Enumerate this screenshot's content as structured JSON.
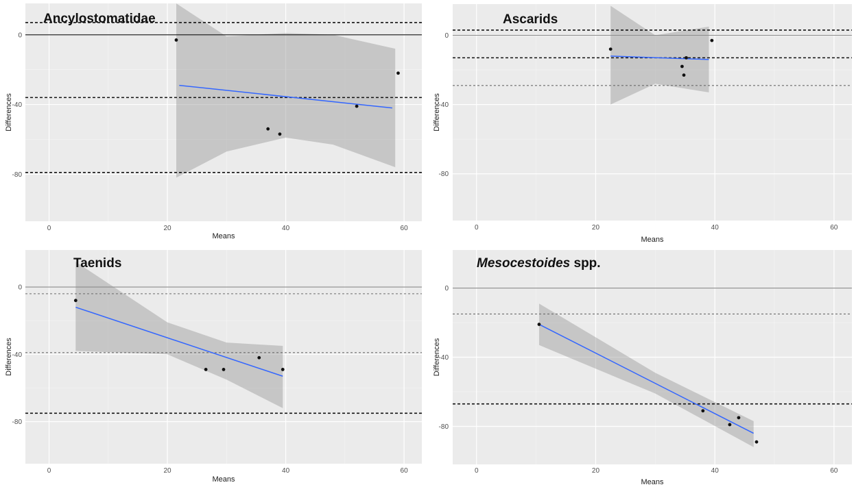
{
  "chart_data": [
    {
      "type": "scatter",
      "title": "Ancylostomatidae",
      "title_italic": "",
      "xlabel": "Means",
      "ylabel": "Differences",
      "xlim": [
        -4,
        63
      ],
      "ylim": [
        -107,
        18
      ],
      "xticks": [
        0,
        20,
        40,
        60
      ],
      "yticks": [
        0,
        -40,
        -80
      ],
      "ytick_labels": [
        "0",
        "-40",
        "-80"
      ],
      "points": [
        [
          21.5,
          -3
        ],
        [
          37,
          -54
        ],
        [
          39,
          -57
        ],
        [
          52,
          -41
        ],
        [
          59,
          -22
        ]
      ],
      "fit_line": [
        [
          22,
          -29
        ],
        [
          58,
          -42
        ]
      ],
      "ci_band": [
        [
          21.5,
          -82
        ],
        [
          30,
          -67
        ],
        [
          40,
          -59
        ],
        [
          48,
          -63
        ],
        [
          58.5,
          -76
        ],
        [
          58.5,
          -8
        ],
        [
          48,
          0
        ],
        [
          40,
          1
        ],
        [
          30,
          -1
        ],
        [
          21.5,
          18
        ]
      ],
      "reference_lines": [
        {
          "y": 0,
          "style": "solid"
        },
        {
          "y": 7,
          "style": "dashed-heavy"
        },
        {
          "y": -36,
          "style": "dashed-heavy"
        },
        {
          "y": -79,
          "style": "dashed-heavy"
        }
      ]
    },
    {
      "type": "scatter",
      "title": "Ascarids",
      "title_italic": "",
      "xlabel": "Means",
      "ylabel": "Differences",
      "xlim": [
        -4,
        63
      ],
      "ylim": [
        -107,
        18
      ],
      "xticks": [
        0,
        20,
        40,
        60
      ],
      "yticks": [
        0,
        -40,
        -80
      ],
      "ytick_labels": [
        "0",
        "-40",
        "-80"
      ],
      "points": [
        [
          22.5,
          -8
        ],
        [
          34.5,
          -18
        ],
        [
          34.8,
          -23
        ],
        [
          35.2,
          -13
        ],
        [
          39.5,
          -3
        ]
      ],
      "fit_line": [
        [
          22.5,
          -12
        ],
        [
          39,
          -14
        ]
      ],
      "ci_band": [
        [
          22.5,
          -40
        ],
        [
          30,
          -28
        ],
        [
          39,
          -33
        ],
        [
          39,
          5
        ],
        [
          30,
          0
        ],
        [
          22.5,
          17
        ]
      ],
      "reference_lines": [
        {
          "y": 0,
          "style": "solid-light"
        },
        {
          "y": 3,
          "style": "dashed-heavy"
        },
        {
          "y": -13,
          "style": "dashed-heavy"
        },
        {
          "y": -29,
          "style": "dashed-light"
        }
      ]
    },
    {
      "type": "scatter",
      "title": "Taenids",
      "title_italic": "",
      "xlabel": "Means",
      "ylabel": "Differences",
      "xlim": [
        -4,
        63
      ],
      "ylim": [
        -105,
        22
      ],
      "xticks": [
        0,
        20,
        40,
        60
      ],
      "yticks": [
        0,
        -40,
        -80
      ],
      "ytick_labels": [
        "0",
        "-40",
        "-80"
      ],
      "points": [
        [
          4.5,
          -8
        ],
        [
          26.5,
          -49
        ],
        [
          29.5,
          -49
        ],
        [
          35.5,
          -42
        ],
        [
          39.5,
          -49
        ]
      ],
      "fit_line": [
        [
          4.5,
          -12
        ],
        [
          39.5,
          -53
        ]
      ],
      "ci_band": [
        [
          4.5,
          -38
        ],
        [
          20,
          -40
        ],
        [
          30,
          -55
        ],
        [
          39.5,
          -72
        ],
        [
          39.5,
          -35
        ],
        [
          30,
          -33
        ],
        [
          20,
          -21
        ],
        [
          4.5,
          15
        ]
      ],
      "reference_lines": [
        {
          "y": 0,
          "style": "solid-light"
        },
        {
          "y": -4,
          "style": "dashed-light"
        },
        {
          "y": -39,
          "style": "dashed-light"
        },
        {
          "y": -75,
          "style": "dashed-heavy"
        }
      ]
    },
    {
      "type": "scatter",
      "title": "Mesocestoides",
      "title_italic": "Mesocestoides",
      "title_suffix": " spp.",
      "xlabel": "Means",
      "ylabel": "Differences",
      "xlim": [
        -4,
        63
      ],
      "ylim": [
        -102,
        22
      ],
      "xticks": [
        0,
        20,
        40,
        60
      ],
      "yticks": [
        0,
        -40,
        -80
      ],
      "ytick_labels": [
        "0",
        "-40",
        "-80"
      ],
      "points": [
        [
          10.5,
          -21
        ],
        [
          38,
          -71
        ],
        [
          42.5,
          -79
        ],
        [
          44,
          -75
        ],
        [
          47,
          -89
        ]
      ],
      "fit_line": [
        [
          10.5,
          -21
        ],
        [
          46.5,
          -84
        ]
      ],
      "ci_band": [
        [
          10.5,
          -33
        ],
        [
          30,
          -61
        ],
        [
          46.5,
          -92
        ],
        [
          46.5,
          -77
        ],
        [
          30,
          -49
        ],
        [
          10.5,
          -9
        ]
      ],
      "reference_lines": [
        {
          "y": 0,
          "style": "solid-light"
        },
        {
          "y": -15,
          "style": "dashed-light"
        },
        {
          "y": -67,
          "style": "dashed-heavy"
        }
      ]
    }
  ]
}
